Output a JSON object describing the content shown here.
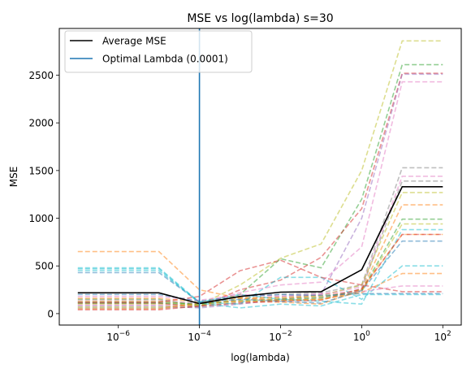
{
  "chart_data": {
    "type": "line",
    "title": "MSE vs log(lambda) s=30",
    "xlabel": "log(lambda)",
    "ylabel": "MSE",
    "xscale": "log",
    "x": [
      1e-07,
      1e-05,
      0.0001,
      0.001,
      0.01,
      0.1,
      1,
      10,
      100
    ],
    "xlim": [
      3.5e-08,
      285
    ],
    "ylim": [
      -120,
      2990
    ],
    "xticks": [
      {
        "value": 1e-06,
        "base": "10",
        "exp": "−6"
      },
      {
        "value": 0.0001,
        "base": "10",
        "exp": "−4"
      },
      {
        "value": 0.01,
        "base": "10",
        "exp": "−2"
      },
      {
        "value": 1,
        "base": "10",
        "exp": "0"
      },
      {
        "value": 100,
        "base": "10",
        "exp": "2"
      }
    ],
    "yticks": [
      0,
      500,
      1000,
      1500,
      2000,
      2500
    ],
    "grid": false,
    "legend_placement": "top-left",
    "legend": [
      {
        "label": "Average MSE",
        "color": "#000000"
      },
      {
        "label": "Optimal Lambda (0.0001)",
        "color": "#1f77b4"
      }
    ],
    "average_series": {
      "name": "Average MSE",
      "color": "#000000",
      "values": [
        218,
        218,
        105,
        180,
        225,
        230,
        460,
        1330,
        1330
      ]
    },
    "optimal_lambda": {
      "name": "Optimal Lambda (0.0001)",
      "x": 0.0001,
      "color": "#1f77b4"
    },
    "fold_series": [
      {
        "color": "#bcbd22",
        "values": [
          100,
          100,
          90,
          300,
          580,
          730,
          1500,
          2860,
          2860
        ]
      },
      {
        "color": "#2ca02c",
        "values": [
          150,
          150,
          80,
          200,
          575,
          480,
          1200,
          2610,
          2610
        ]
      },
      {
        "color": "#d62728",
        "values": [
          110,
          110,
          70,
          250,
          350,
          590,
          1100,
          2520,
          2520
        ]
      },
      {
        "color": "#9467bd",
        "values": [
          80,
          80,
          60,
          100,
          150,
          200,
          1000,
          2510,
          2510
        ]
      },
      {
        "color": "#e377c2",
        "values": [
          140,
          140,
          100,
          220,
          300,
          330,
          700,
          2430,
          2430
        ]
      },
      {
        "color": "#7f7f7f",
        "values": [
          120,
          120,
          110,
          180,
          200,
          220,
          300,
          1530,
          1530
        ]
      },
      {
        "color": "#e377c2",
        "values": [
          90,
          90,
          80,
          150,
          180,
          200,
          280,
          1440,
          1440
        ]
      },
      {
        "color": "#7f7f7f",
        "values": [
          60,
          60,
          70,
          120,
          140,
          160,
          260,
          1390,
          1390
        ]
      },
      {
        "color": "#bcbd22",
        "values": [
          130,
          130,
          90,
          160,
          170,
          190,
          300,
          1270,
          1270
        ]
      },
      {
        "color": "#ff7f0e",
        "values": [
          160,
          160,
          120,
          170,
          160,
          180,
          250,
          1140,
          1140
        ]
      },
      {
        "color": "#2ca02c",
        "values": [
          110,
          110,
          100,
          140,
          150,
          170,
          240,
          990,
          990
        ]
      },
      {
        "color": "#bcbd22",
        "values": [
          70,
          70,
          90,
          130,
          140,
          150,
          230,
          940,
          940
        ]
      },
      {
        "color": "#17becf",
        "values": [
          450,
          450,
          120,
          200,
          150,
          130,
          100,
          880,
          880
        ]
      },
      {
        "color": "#ff7f0e",
        "values": [
          50,
          50,
          110,
          130,
          120,
          100,
          250,
          830,
          830
        ]
      },
      {
        "color": "#d62728",
        "values": [
          40,
          40,
          80,
          110,
          130,
          140,
          260,
          830,
          830
        ]
      },
      {
        "color": "#1f77b4",
        "values": [
          430,
          430,
          120,
          150,
          130,
          110,
          240,
          760,
          760
        ]
      },
      {
        "color": "#ff7f0e",
        "values": [
          650,
          650,
          250,
          160,
          140,
          150,
          220,
          420,
          420
        ]
      },
      {
        "color": "#17becf",
        "values": [
          480,
          480,
          120,
          100,
          380,
          380,
          150,
          500,
          500
        ]
      },
      {
        "color": "#e377c2",
        "values": [
          180,
          180,
          140,
          200,
          180,
          210,
          230,
          290,
          290
        ]
      },
      {
        "color": "#17becf",
        "values": [
          470,
          470,
          110,
          60,
          100,
          80,
          200,
          200,
          200
        ]
      },
      {
        "color": "#d62728",
        "values": [
          120,
          120,
          180,
          450,
          560,
          380,
          300,
          230,
          230
        ]
      },
      {
        "color": "#1f77b4",
        "values": [
          200,
          200,
          130,
          180,
          200,
          190,
          210,
          210,
          210
        ]
      }
    ]
  }
}
